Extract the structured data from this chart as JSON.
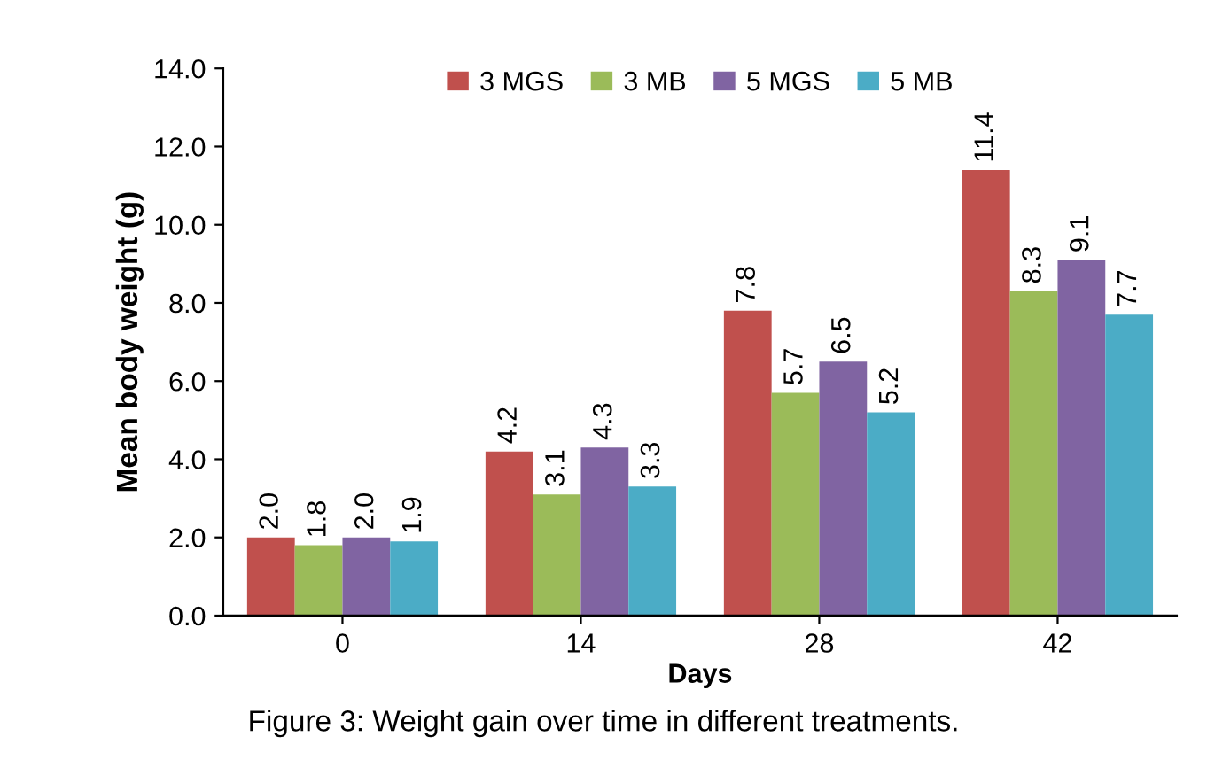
{
  "chart_data": {
    "type": "bar",
    "categories": [
      "0",
      "14",
      "28",
      "42"
    ],
    "series": [
      {
        "name": "3 MGS",
        "color": "#c0504d",
        "values": [
          2.0,
          4.2,
          7.8,
          11.4
        ],
        "value_labels": [
          "2.0",
          "4.2",
          "7.8",
          "11.4"
        ]
      },
      {
        "name": "3 MB",
        "color": "#9bbb59",
        "values": [
          1.8,
          3.1,
          5.7,
          8.3
        ],
        "value_labels": [
          "1.8",
          "3.1",
          "5.7",
          "8.3"
        ]
      },
      {
        "name": "5 MGS",
        "color": "#8064a2",
        "values": [
          2.0,
          4.3,
          6.5,
          9.1
        ],
        "value_labels": [
          "2.0",
          "4.3",
          "6.5",
          "9.1"
        ]
      },
      {
        "name": "5 MB",
        "color": "#4bacc6",
        "values": [
          1.9,
          3.3,
          5.2,
          7.7
        ],
        "value_labels": [
          "1.9",
          "3.3",
          "5.2",
          "7.7"
        ]
      }
    ],
    "xlabel": "Days",
    "ylabel": "Mean body weight (g)",
    "ylim": [
      0,
      14
    ],
    "yticks": [
      {
        "value": 0,
        "label": "0.0"
      },
      {
        "value": 2,
        "label": "2.0"
      },
      {
        "value": 4,
        "label": "4.0"
      },
      {
        "value": 6,
        "label": "6.0"
      },
      {
        "value": 8,
        "label": "8.0"
      },
      {
        "value": 10,
        "label": "10.0"
      },
      {
        "value": 12,
        "label": "12.0"
      },
      {
        "value": 14,
        "label": "14.0"
      }
    ],
    "legend": "top",
    "grid": false,
    "annotations": [
      "Figure 3: Weight gain over time in different treatments."
    ]
  }
}
